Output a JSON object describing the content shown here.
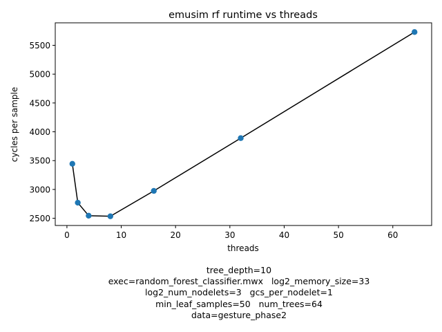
{
  "chart_data": {
    "type": "line",
    "title": "emusim rf runtime vs threads",
    "xlabel": "threads",
    "ylabel": "cycles per sample",
    "x": [
      1,
      2,
      4,
      8,
      16,
      32,
      64
    ],
    "series": [
      {
        "values": [
          3445,
          2770,
          2545,
          2535,
          2975,
          3890,
          5730
        ]
      }
    ],
    "xlim": [
      -2.15,
      67.15
    ],
    "ylim": [
      2375,
      5890
    ],
    "xticks": [
      0,
      10,
      20,
      30,
      40,
      50,
      60
    ],
    "yticks": [
      2500,
      3000,
      3500,
      4000,
      4500,
      5000,
      5500
    ],
    "grid": false,
    "legend": "none",
    "line_color": "#000000",
    "marker_color": "#1f77b4"
  },
  "caption_lines": [
    "tree_depth=10",
    "exec=random_forest_classifier.mwx   log2_memory_size=33",
    "log2_num_nodelets=3   gcs_per_nodelet=1",
    "min_leaf_samples=50   num_trees=64",
    "data=gesture_phase2"
  ]
}
